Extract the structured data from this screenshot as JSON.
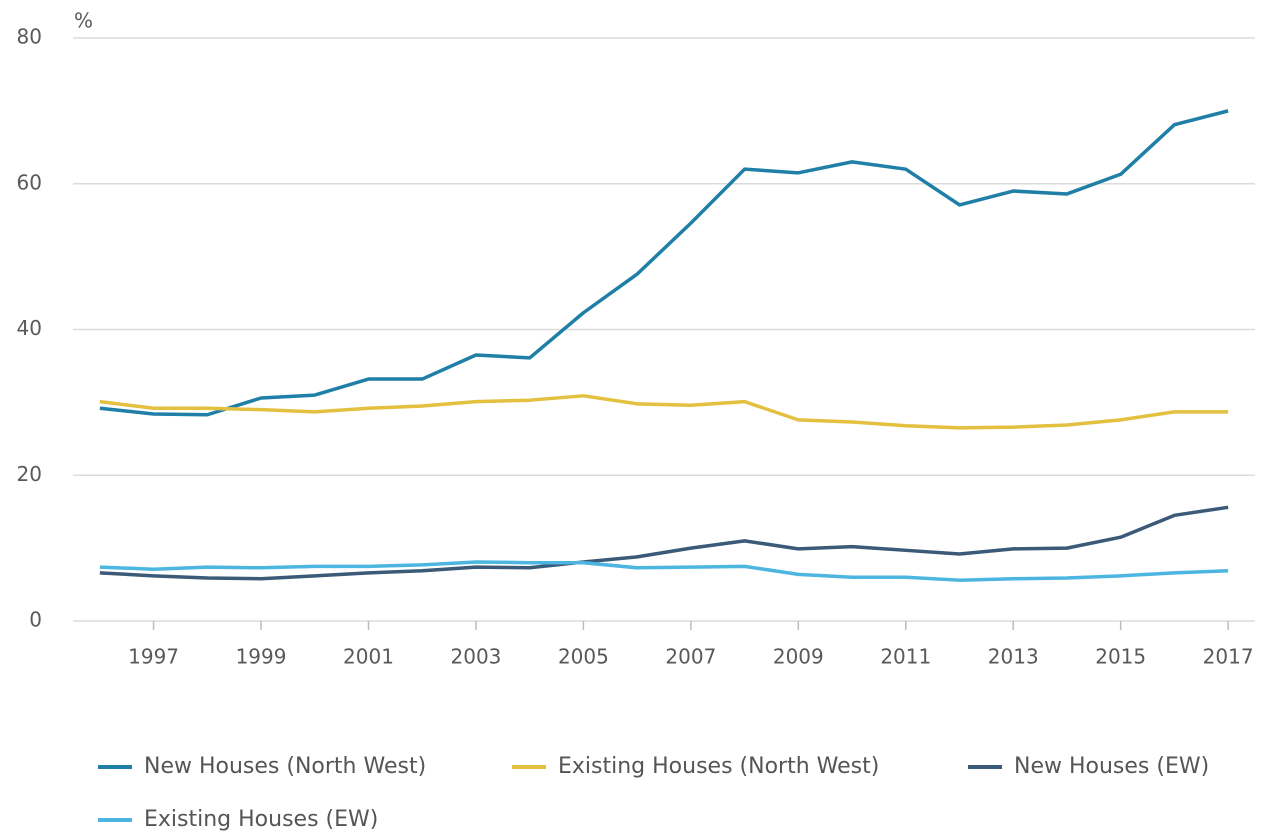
{
  "chart_data": {
    "type": "line",
    "y_label": "%",
    "x": [
      1996,
      1997,
      1998,
      1999,
      2000,
      2001,
      2002,
      2003,
      2004,
      2005,
      2006,
      2007,
      2008,
      2009,
      2010,
      2011,
      2012,
      2013,
      2014,
      2015,
      2016,
      2017
    ],
    "xlim": [
      1995.5,
      2017.5
    ],
    "xticks": [
      1997,
      1999,
      2001,
      2003,
      2005,
      2007,
      2009,
      2011,
      2013,
      2015,
      2017
    ],
    "ylim": [
      0,
      80
    ],
    "yticks": [
      0,
      20,
      40,
      60,
      80
    ],
    "grid": true,
    "legend": "bottom",
    "series": [
      {
        "name": "New Houses (North West)",
        "color": "#1f7fa6",
        "values": [
          29.2,
          28.4,
          28.3,
          30.6,
          31.0,
          33.2,
          33.2,
          36.5,
          36.1,
          42.3,
          47.6,
          54.6,
          62.0,
          61.5,
          63.0,
          62.0,
          57.1,
          59.0,
          58.6,
          61.3,
          68.1,
          70.0
        ]
      },
      {
        "name": "Existing Houses (North West)",
        "color": "#e3c03f",
        "values": [
          30.1,
          29.2,
          29.2,
          29.0,
          28.7,
          29.2,
          29.5,
          30.1,
          30.3,
          30.9,
          29.8,
          29.6,
          30.1,
          27.6,
          27.3,
          26.8,
          26.5,
          26.6,
          26.9,
          27.6,
          28.7,
          28.7
        ]
      },
      {
        "name": "New Houses (EW)",
        "color": "#3a5a78",
        "values": [
          6.6,
          6.2,
          5.9,
          5.8,
          6.2,
          6.6,
          6.9,
          7.4,
          7.3,
          8.1,
          8.8,
          10.0,
          11.0,
          9.9,
          10.2,
          9.7,
          9.2,
          9.9,
          10.0,
          11.5,
          14.5,
          15.6
        ]
      },
      {
        "name": "Existing Houses (EW)",
        "color": "#4cb6e0",
        "values": [
          7.4,
          7.1,
          7.4,
          7.3,
          7.5,
          7.5,
          7.7,
          8.1,
          8.0,
          8.0,
          7.3,
          7.4,
          7.5,
          6.4,
          6.0,
          6.0,
          5.6,
          5.8,
          5.9,
          6.2,
          6.6,
          6.9
        ]
      }
    ]
  }
}
